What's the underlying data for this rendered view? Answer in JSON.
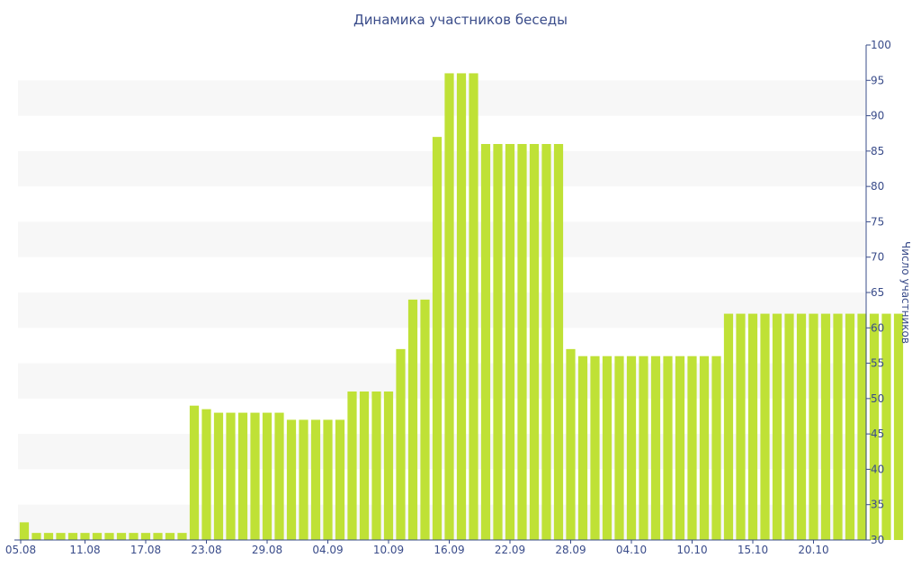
{
  "chart_data": {
    "type": "bar",
    "title": "Динамика участников беседы",
    "xlabel": "",
    "ylabel": "Число участников",
    "ylim": [
      30,
      100
    ],
    "yticks": [
      30,
      35,
      40,
      45,
      50,
      55,
      60,
      65,
      70,
      75,
      80,
      85,
      90,
      95,
      100
    ],
    "x_tick_labels": [
      "05.08",
      "11.08",
      "17.08",
      "23.08",
      "29.08",
      "04.09",
      "10.09",
      "16.09",
      "22.09",
      "28.09",
      "04.10",
      "10.10",
      "15.10",
      "20.10"
    ],
    "x_tick_positions": [
      0,
      5,
      10,
      15,
      20,
      25,
      30,
      35,
      40,
      45,
      50,
      55,
      60,
      65
    ],
    "grid": "alternating horizontal bands",
    "y_axis_position": "right",
    "values": [
      32.5,
      31,
      31,
      31,
      31,
      31,
      31,
      31,
      31,
      31,
      31,
      31,
      31,
      31,
      49,
      48.5,
      48,
      48,
      48,
      48,
      48,
      48,
      47,
      47,
      47,
      47,
      47,
      51,
      51,
      51,
      51,
      57,
      64,
      64,
      87,
      96,
      96,
      96,
      86,
      86,
      86,
      86,
      86,
      86,
      86,
      57,
      56,
      56,
      56,
      56,
      56,
      56,
      56,
      56,
      56,
      56,
      56,
      56,
      62,
      62,
      62,
      62,
      62,
      62,
      62,
      62,
      62,
      62,
      62,
      62,
      62,
      62,
      62
    ]
  },
  "colors": {
    "bar": "#bfe136",
    "band": "#f7f7f7",
    "axis": "#3a4c8a",
    "text": "#3a4c8a"
  }
}
